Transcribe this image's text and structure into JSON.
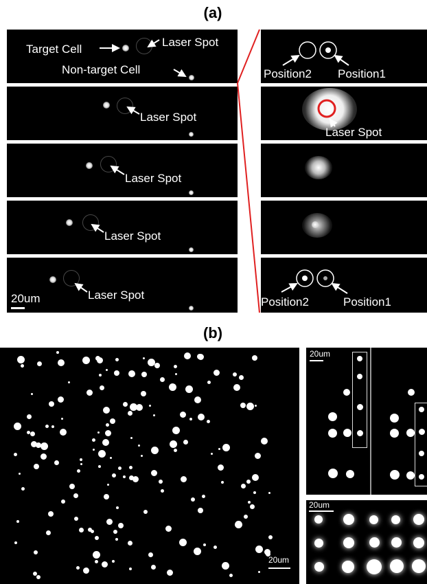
{
  "figure": {
    "panel_a_label": "(a)",
    "panel_b_label": "(b)",
    "a": {
      "target_cell": "Target Cell",
      "laser_spot": "Laser Spot",
      "non_target_cell": "Non-target Cell",
      "position1": "Position1",
      "position2": "Position2",
      "scale": "20um"
    },
    "b": {
      "scale": "20um"
    }
  }
}
